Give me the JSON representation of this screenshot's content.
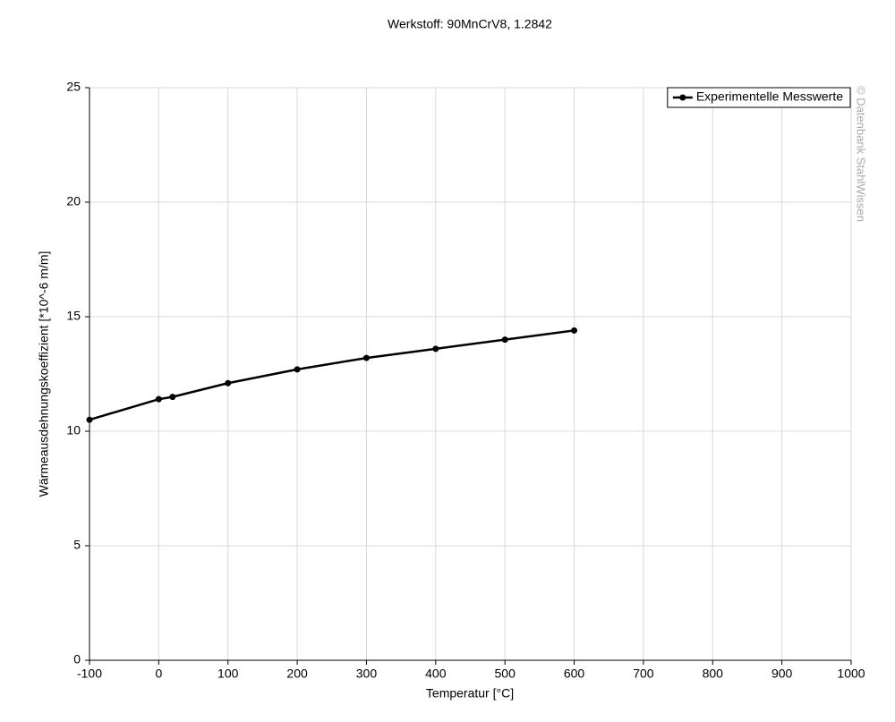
{
  "chart_data": {
    "type": "line",
    "title": "Werkstoff: 90MnCrV8, 1.2842",
    "x_label": "Temperatur [°C]",
    "y_label": "Wärmeausdehnungskoeffizient [*10^-6 m/m]",
    "watermark": "© Datenbank StahlWissen",
    "x": [
      -100,
      0,
      20,
      100,
      200,
      300,
      400,
      500,
      600
    ],
    "series": [
      {
        "name": "Experimentelle Messwerte",
        "color": "#000000",
        "values": [
          10.5,
          11.4,
          11.5,
          12.1,
          12.7,
          13.2,
          13.6,
          14.0,
          14.4
        ]
      }
    ],
    "xlim": [
      -100,
      1000
    ],
    "xticks": [
      -100,
      0,
      100,
      200,
      300,
      400,
      500,
      600,
      700,
      800,
      900,
      1000
    ],
    "ylim": [
      0,
      25
    ],
    "yticks": [
      0,
      5,
      10,
      15,
      20,
      25
    ],
    "grid": true,
    "legend": "top-right"
  }
}
